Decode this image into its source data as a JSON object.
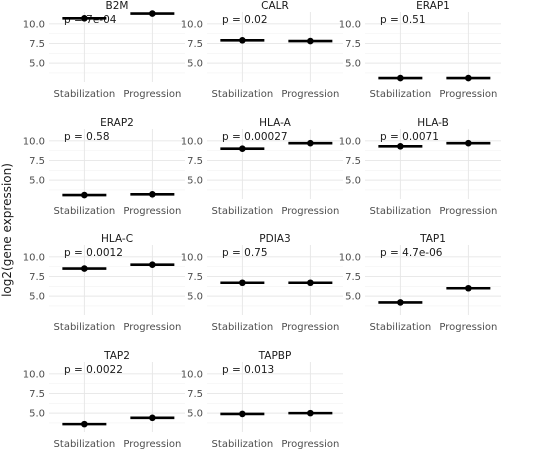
{
  "chart_data": {
    "type": "scatter",
    "ylabel": "log2(gene expression)",
    "xlabel": "",
    "categories": [
      "Stabilization",
      "Progression"
    ],
    "ylim": [
      2.6,
      11.5
    ],
    "yticks": [
      "5.0",
      "7.5",
      "10.0"
    ],
    "grid": true,
    "panels": [
      {
        "title": "B2M",
        "p": "p = 7e-04",
        "values": [
          10.7,
          11.3
        ]
      },
      {
        "title": "CALR",
        "p": "p = 0.02",
        "values": [
          7.9,
          7.8
        ]
      },
      {
        "title": "ERAP1",
        "p": "p = 0.51",
        "values": [
          3.1,
          3.1
        ]
      },
      {
        "title": "ERAP2",
        "p": "p = 0.58",
        "values": [
          3.1,
          3.2
        ]
      },
      {
        "title": "HLA-A",
        "p": "p = 0.00027",
        "values": [
          9.0,
          9.7
        ]
      },
      {
        "title": "HLA-B",
        "p": "p = 0.0071",
        "values": [
          9.3,
          9.7
        ]
      },
      {
        "title": "HLA-C",
        "p": "p = 0.0012",
        "values": [
          8.5,
          9.0
        ]
      },
      {
        "title": "PDIA3",
        "p": "p = 0.75",
        "values": [
          6.7,
          6.7
        ]
      },
      {
        "title": "TAP1",
        "p": "p = 4.7e-06",
        "values": [
          4.2,
          6.0
        ]
      },
      {
        "title": "TAP2",
        "p": "p = 0.0022",
        "values": [
          3.6,
          4.4
        ]
      },
      {
        "title": "TAPBP",
        "p": "p = 0.013",
        "values": [
          4.9,
          5.0
        ]
      }
    ]
  },
  "colors": {
    "point": "#000000",
    "grid": "#e6e6e6",
    "text": "#1a1a1a",
    "tick": "#4d4d4d"
  }
}
